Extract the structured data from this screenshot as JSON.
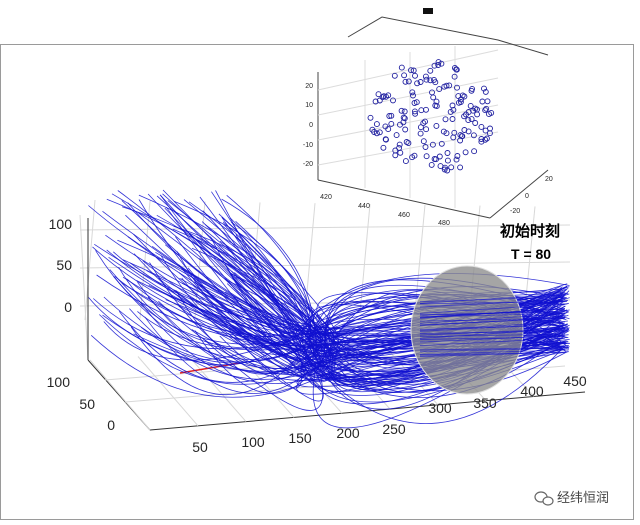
{
  "annotation": {
    "chinese_label": "初始时刻",
    "time_label": "T = 80"
  },
  "watermark": {
    "text": "经纬恒润",
    "icon": "wechat-icon"
  },
  "colors": {
    "trajectory": "#1010d0",
    "marker": "#2020a0",
    "sphere": "#8c8c8c",
    "red_line": "#e02020",
    "grid": "#d8d8d8"
  },
  "chart_data": [
    {
      "type": "line",
      "title": "",
      "description_free": true,
      "x_ticks": [
        "50",
        "100",
        "150",
        "200",
        "250",
        "300",
        "350",
        "400",
        "450"
      ],
      "y_ticks": [
        "0",
        "50",
        "100"
      ],
      "z_ticks": [
        "0",
        "50",
        "100"
      ],
      "xlim": [
        0,
        470
      ],
      "ylim": [
        0,
        120
      ],
      "zlim": [
        -20,
        120
      ],
      "grid": true,
      "series_count": 150,
      "start_region": {
        "x": [
          0,
          100
        ],
        "y": [
          0,
          120
        ],
        "z": [
          20,
          120
        ]
      },
      "end_region": {
        "x": [
          380,
          460
        ],
        "y": [
          20,
          80
        ],
        "z": [
          -20,
          20
        ]
      }
    },
    {
      "type": "scatter",
      "title": "",
      "x_ticks": [
        "420",
        "440",
        "460",
        "480"
      ],
      "y_ticks": [
        "-20",
        "0",
        "20"
      ],
      "z_ticks": [
        "-20",
        "-10",
        "0",
        "10",
        "20"
      ],
      "xlim": [
        410,
        490
      ],
      "ylim": [
        -25,
        25
      ],
      "zlim": [
        -25,
        25
      ],
      "grid": true,
      "marker": "circle",
      "point_count": 160
    }
  ]
}
